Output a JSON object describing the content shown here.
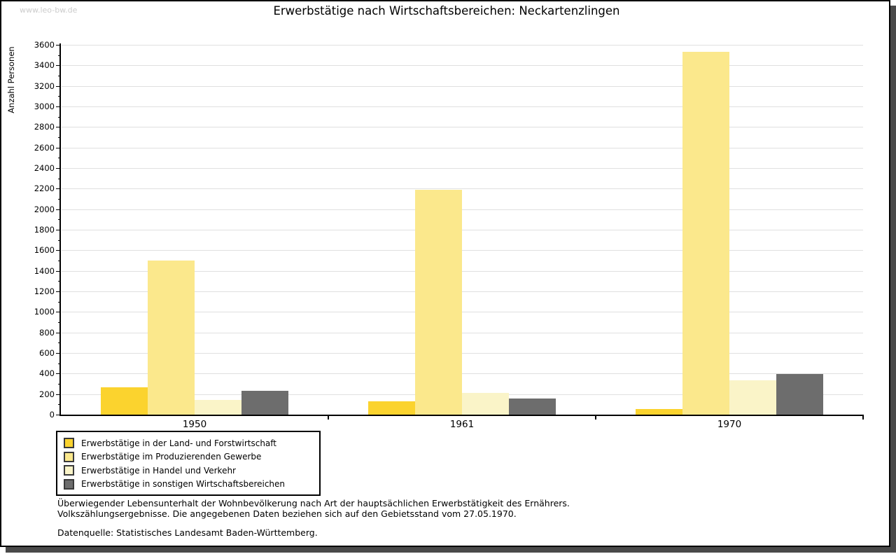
{
  "watermark": "www.leo-bw.de",
  "title": "Erwerbstätige nach Wirtschaftsbereichen: Neckartenzlingen",
  "chart_data": {
    "type": "bar",
    "title": "Erwerbstätige nach Wirtschaftsbereichen: Neckartenzlingen",
    "xlabel": "",
    "ylabel": "Anzahl Personen",
    "ylim": [
      0,
      3600
    ],
    "ytick_major_step": 200,
    "ytick_minor_step": 100,
    "grid": true,
    "legend_position": "bottom-left",
    "categories": [
      "1950",
      "1961",
      "1970"
    ],
    "series": [
      {
        "key": "land-forstwirtschaft",
        "name": "Erwerbstätige in der Land- und Forstwirtschaft",
        "color": "#FBD32E",
        "values": [
          265,
          130,
          55
        ]
      },
      {
        "key": "produzierendes-gewerbe",
        "name": "Erwerbstätige im Produzierenden Gewerbe",
        "color": "#FBE88C",
        "values": [
          1500,
          2190,
          3530
        ]
      },
      {
        "key": "handel-verkehr",
        "name": "Erwerbstätige in Handel und Verkehr",
        "color": "#FAF4C8",
        "values": [
          140,
          210,
          335
        ]
      },
      {
        "key": "sonstige-wirtschaftsbereiche",
        "name": "Erwerbstätige in sonstigen Wirtschaftsbereichen",
        "color": "#6D6D6D",
        "values": [
          235,
          155,
          395
        ]
      }
    ]
  },
  "footnote_line1": "Überwiegender Lebensunterhalt der Wohnbevölkerung nach Art der hauptsächlichen Erwerbstätigkeit des Ernährers.",
  "footnote_line2": "Volkszählungsergebnisse. Die angegebenen Daten beziehen sich auf den Gebietsstand vom 27.05.1970.",
  "source": "Datenquelle: Statistisches Landesamt Baden-Württemberg."
}
